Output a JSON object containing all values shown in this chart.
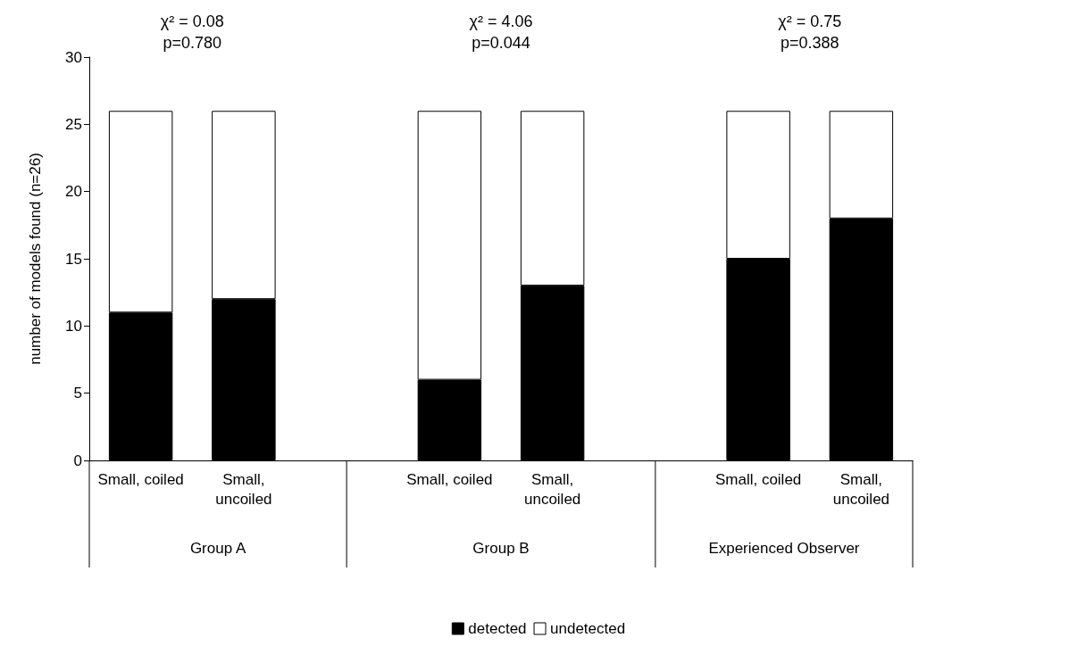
{
  "chart_data": {
    "type": "bar",
    "stacked": true,
    "ylabel": "number of models found (n=26)",
    "categories": [
      "Small, coiled",
      "Small, uncoiled",
      null,
      "Small, coiled",
      "Small, uncoiled",
      null,
      "Small, coiled",
      "Small, uncoiled"
    ],
    "series": [
      {
        "name": "detected",
        "color": "#000000",
        "values": [
          11,
          12,
          null,
          6,
          13,
          null,
          15,
          18
        ]
      },
      {
        "name": "undetected",
        "color": "#ffffff",
        "values": [
          15,
          14,
          null,
          20,
          13,
          null,
          11,
          8
        ]
      }
    ],
    "ylim": [
      0,
      30
    ],
    "yticks": [
      0,
      5,
      10,
      15,
      20,
      25,
      30
    ],
    "grid": false,
    "legend": "bottom",
    "annotations": [
      "χ² = 0.08\np=0.780",
      "χ² = 4.06\np=0.044",
      "χ² = 0.75\np=0.388",
      "Group A",
      "Group B",
      "Experienced Observer"
    ]
  }
}
